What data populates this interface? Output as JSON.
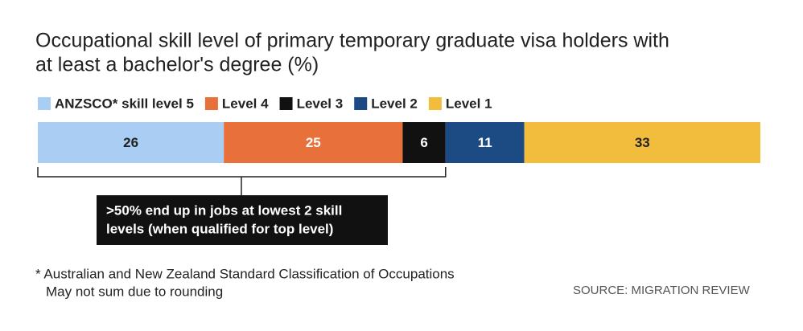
{
  "chart_data": {
    "type": "stacked-bar",
    "title": [
      "Occupational skill level of primary temporary graduate visa holders with",
      "at least a bachelor's degree (%)"
    ],
    "series": [
      {
        "name": "ANZSCO* skill level 5",
        "color": "#a9cdf3",
        "values": [
          26
        ]
      },
      {
        "name": "Level 4",
        "color": "#e8703a",
        "values": [
          25
        ]
      },
      {
        "name": "Level 3",
        "color": "#111111",
        "values": [
          6
        ]
      },
      {
        "name": "Level 2",
        "color": "#1c4a82",
        "values": [
          11
        ]
      },
      {
        "name": "Level 1",
        "color": "#f2bd3c",
        "values": [
          33
        ]
      }
    ],
    "xlim": [
      0,
      101
    ],
    "annotation": [
      ">50% end up in jobs at lowest 2 skill",
      "levels (when qualified for top level)"
    ],
    "footnotes": [
      "* Australian and New Zealand Standard Classification of Occupations",
      "May not sum due to rounding"
    ],
    "source": "SOURCE: MIGRATION REVIEW"
  }
}
